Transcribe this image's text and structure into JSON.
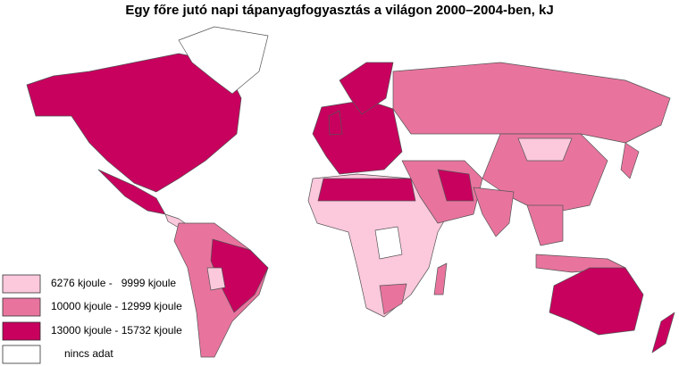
{
  "title": "Egy főre jutó napi tápanyagfogyasztás a világon 2000–2004-ben, kJ",
  "legend": {
    "items": [
      {
        "label": "6276 kjoule -   9999 kjoule",
        "color": "#fcc8dc"
      },
      {
        "label": "10000 kjoule - 12999 kjoule",
        "color": "#e8749e"
      },
      {
        "label": "13000 kjoule - 15732 kjoule",
        "color": "#c8005e"
      },
      {
        "label": "nincs adat",
        "color": "#ffffff"
      }
    ]
  }
}
